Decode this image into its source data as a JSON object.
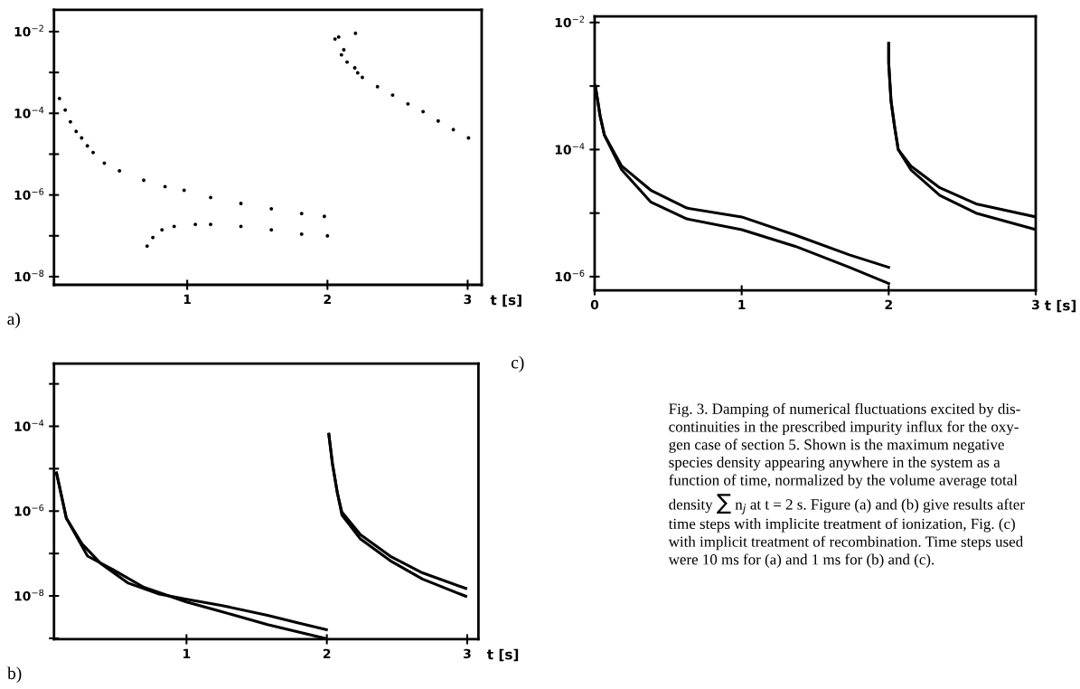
{
  "chart_data": [
    {
      "type": "scatter",
      "marker": "circle",
      "log": "y",
      "xlabel": "t [s]",
      "annotations": [
        "a)"
      ],
      "xlim": [
        0.05,
        3.1
      ],
      "xticks": [
        1,
        2,
        3
      ],
      "ylim": [
        6.3e-09,
        0.034
      ],
      "yticks": [
        {
          "value": 0.01,
          "label": "10$^{−2}$"
        },
        {
          "value": 0.001,
          "label": null
        },
        {
          "value": 0.0001,
          "label": "10$^{−4}$"
        },
        {
          "value": 1e-05,
          "label": null
        },
        {
          "value": 1e-06,
          "label": "10$^{−6}$"
        },
        {
          "value": 1e-07,
          "label": null
        },
        {
          "value": 1e-08,
          "label": "10$^{−8}$"
        }
      ],
      "series": [
        {
          "color": "#000000",
          "x": [
            0.089,
            0.13,
            0.167,
            0.208,
            0.247,
            0.288,
            0.329,
            0.409,
            0.517,
            0.69,
            0.842,
            0.978,
            1.167,
            1.383,
            1.6,
            1.816,
            1.978
          ],
          "values": [
            0.00023,
            0.00012,
            6.2e-05,
            3.6e-05,
            2.5e-05,
            1.6e-05,
            1.1e-05,
            6e-06,
            3.9e-06,
            2.3e-06,
            1.6e-06,
            1.3e-06,
            8.7e-07,
            6.2e-07,
            4.6e-07,
            3.5e-07,
            3e-07
          ]
        },
        {
          "color": "#000000",
          "x": [
            0.714,
            0.755,
            0.82,
            0.907,
            1.058,
            1.167,
            1.383,
            1.6,
            1.816,
            2.0
          ],
          "values": [
            5.6e-08,
            9.1e-08,
            1.4e-07,
            1.7e-07,
            1.9e-07,
            1.9e-07,
            1.7e-07,
            1.4e-07,
            1.1e-07,
            1e-07
          ]
        },
        {
          "color": "#000000",
          "x": [
            2.054,
            2.08,
            2.1,
            2.117,
            2.14,
            2.195,
            2.2,
            2.216,
            2.249,
            2.357,
            2.465,
            2.574,
            2.682,
            2.79,
            2.898,
            3.006
          ],
          "values": [
            0.0066,
            0.0074,
            0.0027,
            0.0036,
            0.0018,
            0.0013,
            0.0091,
            0.00098,
            0.00076,
            0.00045,
            0.00028,
            0.00017,
            0.00011,
            6.5e-05,
            4e-05,
            2.5e-05
          ]
        }
      ]
    },
    {
      "type": "line",
      "line_style": "solid",
      "log": "y",
      "xlabel": "t [s]",
      "annotations": [
        "b)"
      ],
      "xlim": [
        0.056,
        3.08
      ],
      "xticks": [
        1,
        2,
        3
      ],
      "ylim": [
        9.5e-10,
        0.003
      ],
      "yticks": [
        {
          "value": 0.001,
          "label": null
        },
        {
          "value": 0.0001,
          "label": "10$^{−4}$"
        },
        {
          "value": 1e-05,
          "label": null
        },
        {
          "value": 1e-06,
          "label": "10$^{−6}$"
        },
        {
          "value": 1e-07,
          "label": null
        },
        {
          "value": 1e-08,
          "label": "10$^{−8}$"
        },
        {
          "value": 1e-09,
          "label": null
        }
      ],
      "series": [
        {
          "color": "#000000",
          "x": [
            0.074,
            0.144,
            0.255,
            0.387,
            0.585,
            0.806,
            1.0,
            1.246,
            1.577,
            1.798,
            1.997
          ],
          "values": [
            7.9e-06,
            6.8e-07,
            1.7e-07,
            5.9e-08,
            2e-08,
            1.1e-08,
            8.3e-09,
            6e-09,
            3.5e-09,
            2.3e-09,
            1.6e-09
          ]
        },
        {
          "color": "#000000",
          "x": [
            0.074,
            0.144,
            0.295,
            0.475,
            0.696,
            1.0,
            1.246,
            1.577,
            1.985
          ],
          "values": [
            7.9e-06,
            6.8e-07,
            8.7e-08,
            4.2e-08,
            1.6e-08,
            7.2e-09,
            4.3e-09,
            2.1e-09,
            1e-09
          ]
        },
        {
          "color": "#000000",
          "x": [
            2.014,
            2.04,
            2.074,
            2.107,
            2.239,
            2.46,
            2.681,
            2.99
          ],
          "values": [
            6.5e-05,
            1.3e-05,
            2.8e-06,
            9.5e-07,
            2.8e-07,
            8.3e-08,
            3.5e-08,
            1.5e-08
          ]
        },
        {
          "color": "#000000",
          "x": [
            2.014,
            2.04,
            2.074,
            2.107,
            2.239,
            2.46,
            2.681,
            2.99
          ],
          "values": [
            6.5e-05,
            1.3e-05,
            2.8e-06,
            8.1e-07,
            2.2e-07,
            6.5e-08,
            2.5e-08,
            9.8e-09
          ]
        }
      ]
    },
    {
      "type": "line",
      "line_style": "solid",
      "log": "y",
      "xlabel": "t [s]",
      "annotations": [
        "c)"
      ],
      "xlim": [
        0,
        3
      ],
      "xticks": [
        0,
        1,
        2,
        3
      ],
      "ylim": [
        6.1e-07,
        0.0125
      ],
      "yticks": [
        {
          "value": 0.01,
          "label": "10$^{−2}$"
        },
        {
          "value": 0.001,
          "label": null
        },
        {
          "value": 0.0001,
          "label": "10$^{−4}$"
        },
        {
          "value": 1e-05,
          "label": null
        },
        {
          "value": 1e-06,
          "label": "10$^{−6}$"
        }
      ],
      "series": [
        {
          "color": "#000000",
          "x": [
            0.005,
            0.037,
            0.066,
            0.184,
            0.381,
            0.627,
            1.0,
            1.365,
            1.733,
            2.0
          ],
          "values": [
            0.001,
            0.00034,
            0.00017,
            5.5e-05,
            2.3e-05,
            1.2e-05,
            8.7e-06,
            4.5e-06,
            2.2e-06,
            1.4e-06
          ]
        },
        {
          "color": "#000000",
          "x": [
            0.005,
            0.037,
            0.066,
            0.184,
            0.381,
            0.627,
            1.0,
            1.365,
            1.733,
            2.0
          ],
          "values": [
            0.001,
            0.00034,
            0.00017,
            4.8e-05,
            1.5e-05,
            8.1e-06,
            5.5e-06,
            3e-06,
            1.4e-06,
            7.8e-07
          ]
        },
        {
          "color": "#000000",
          "x": [
            2.0,
            2.0,
            2.016,
            2.04,
            2.065,
            2.151,
            2.348,
            2.594,
            3.0
          ],
          "values": [
            0.0047,
            0.0023,
            0.00058,
            0.00023,
            0.0001,
            5.5e-05,
            2.5e-05,
            1.4e-05,
            8.7e-06
          ]
        },
        {
          "color": "#000000",
          "x": [
            2.0,
            2.0,
            2.016,
            2.04,
            2.065,
            2.151,
            2.348,
            2.594,
            3.0
          ],
          "values": [
            0.0047,
            0.0023,
            0.00058,
            0.00023,
            0.0001,
            4.8e-05,
            1.9e-05,
            1e-05,
            5.5e-06
          ]
        }
      ]
    },
    {
      "type": "other",
      "annotations": [
        "Fig. 3. Damping of numerical fluctuations excited by dis-\ncontinuities in the prescribed impurity influx for the oxy-\ngen case of section 5. Shown is the maximum negative\nspecies density appearing anywhere in the system as a\nfunction of time, normalized by the volume average total\ndensity ∑ n$_{j}$ at t = 2 s. Figure (a) and (b) give results after\ntime steps with implicite treatment of ionization, Fig. (c)\nwith implicit treatment of recombination. Time steps used\nwere 10 ms for (a) and 1 ms for (b) and (c)."
      ]
    }
  ]
}
